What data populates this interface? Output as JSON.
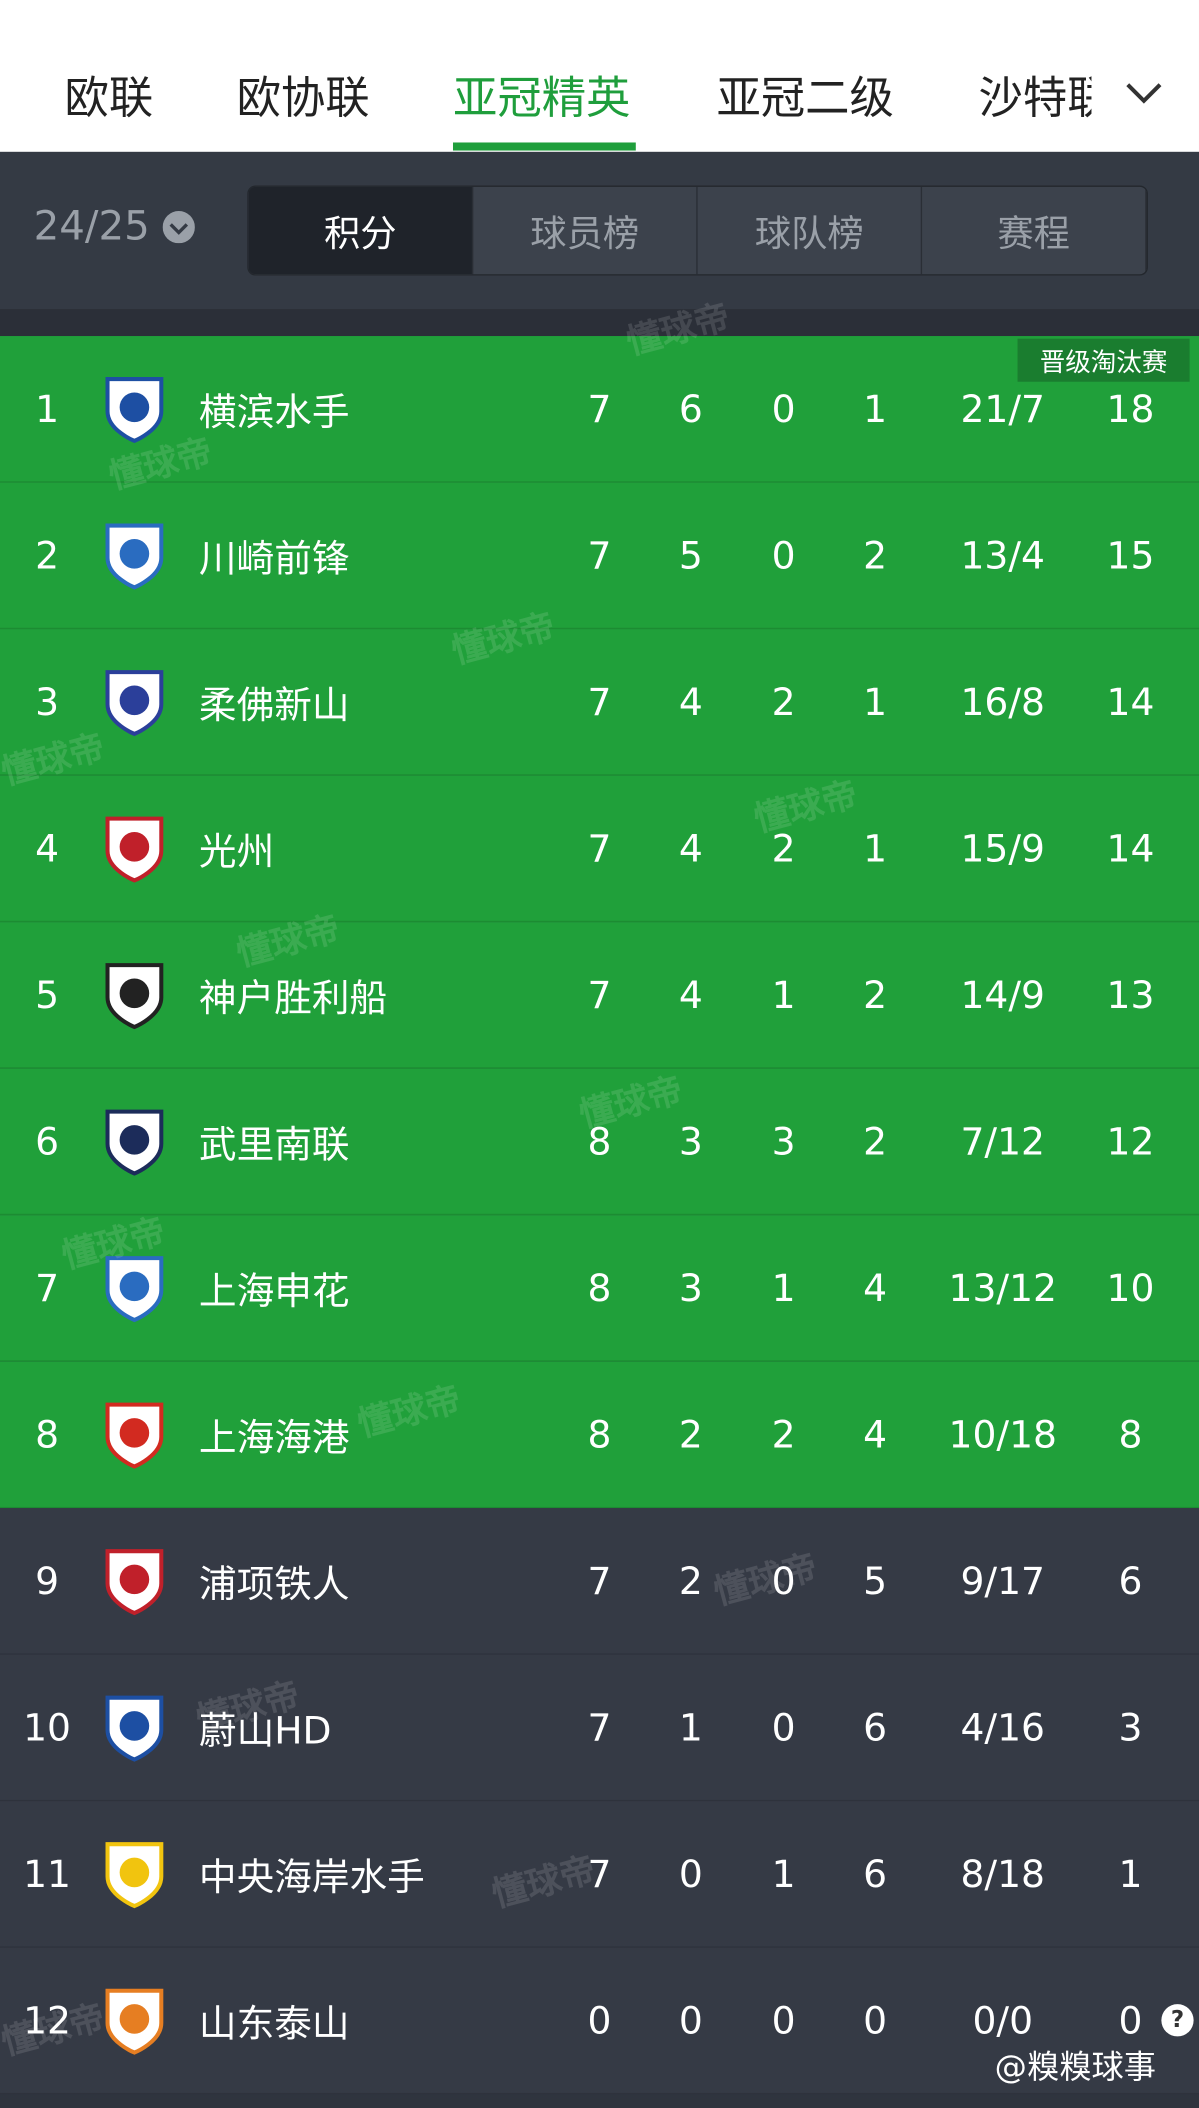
{
  "tabs": [
    "欧联",
    "欧协联",
    "亚冠精英",
    "亚冠二级",
    "沙特联"
  ],
  "active_tab": 2,
  "season": "24/25",
  "subtabs": [
    "积分",
    "球员榜",
    "球队榜",
    "赛程"
  ],
  "active_subtab": 0,
  "qualify_badge": "晋级淘汰赛",
  "qualify_count": 8,
  "watermark": "懂球帝",
  "rows": [
    [
      "1",
      "横滨水手",
      "7",
      "6",
      "0",
      "1",
      "21/7",
      "18"
    ],
    [
      "2",
      "川崎前锋",
      "7",
      "5",
      "0",
      "2",
      "13/4",
      "15"
    ],
    [
      "3",
      "柔佛新山",
      "7",
      "4",
      "2",
      "1",
      "16/8",
      "14"
    ],
    [
      "4",
      "光州",
      "7",
      "4",
      "2",
      "1",
      "15/9",
      "14"
    ],
    [
      "5",
      "神户胜利船",
      "7",
      "4",
      "1",
      "2",
      "14/9",
      "13"
    ],
    [
      "6",
      "武里南联",
      "8",
      "3",
      "3",
      "2",
      "7/12",
      "12"
    ],
    [
      "7",
      "上海申花",
      "8",
      "3",
      "1",
      "4",
      "13/12",
      "10"
    ],
    [
      "8",
      "上海海港",
      "8",
      "2",
      "2",
      "4",
      "10/18",
      "8"
    ],
    [
      "9",
      "浦项铁人",
      "7",
      "2",
      "0",
      "5",
      "9/17",
      "6"
    ],
    [
      "10",
      "蔚山HD",
      "7",
      "1",
      "0",
      "6",
      "4/16",
      "3"
    ],
    [
      "11",
      "中央海岸水手",
      "7",
      "0",
      "1",
      "6",
      "8/18",
      "1"
    ],
    [
      "12",
      "山东泰山",
      "0",
      "0",
      "0",
      "0",
      "0/0",
      "0"
    ]
  ],
  "footer": "@糗糗球事",
  "help": "?"
}
